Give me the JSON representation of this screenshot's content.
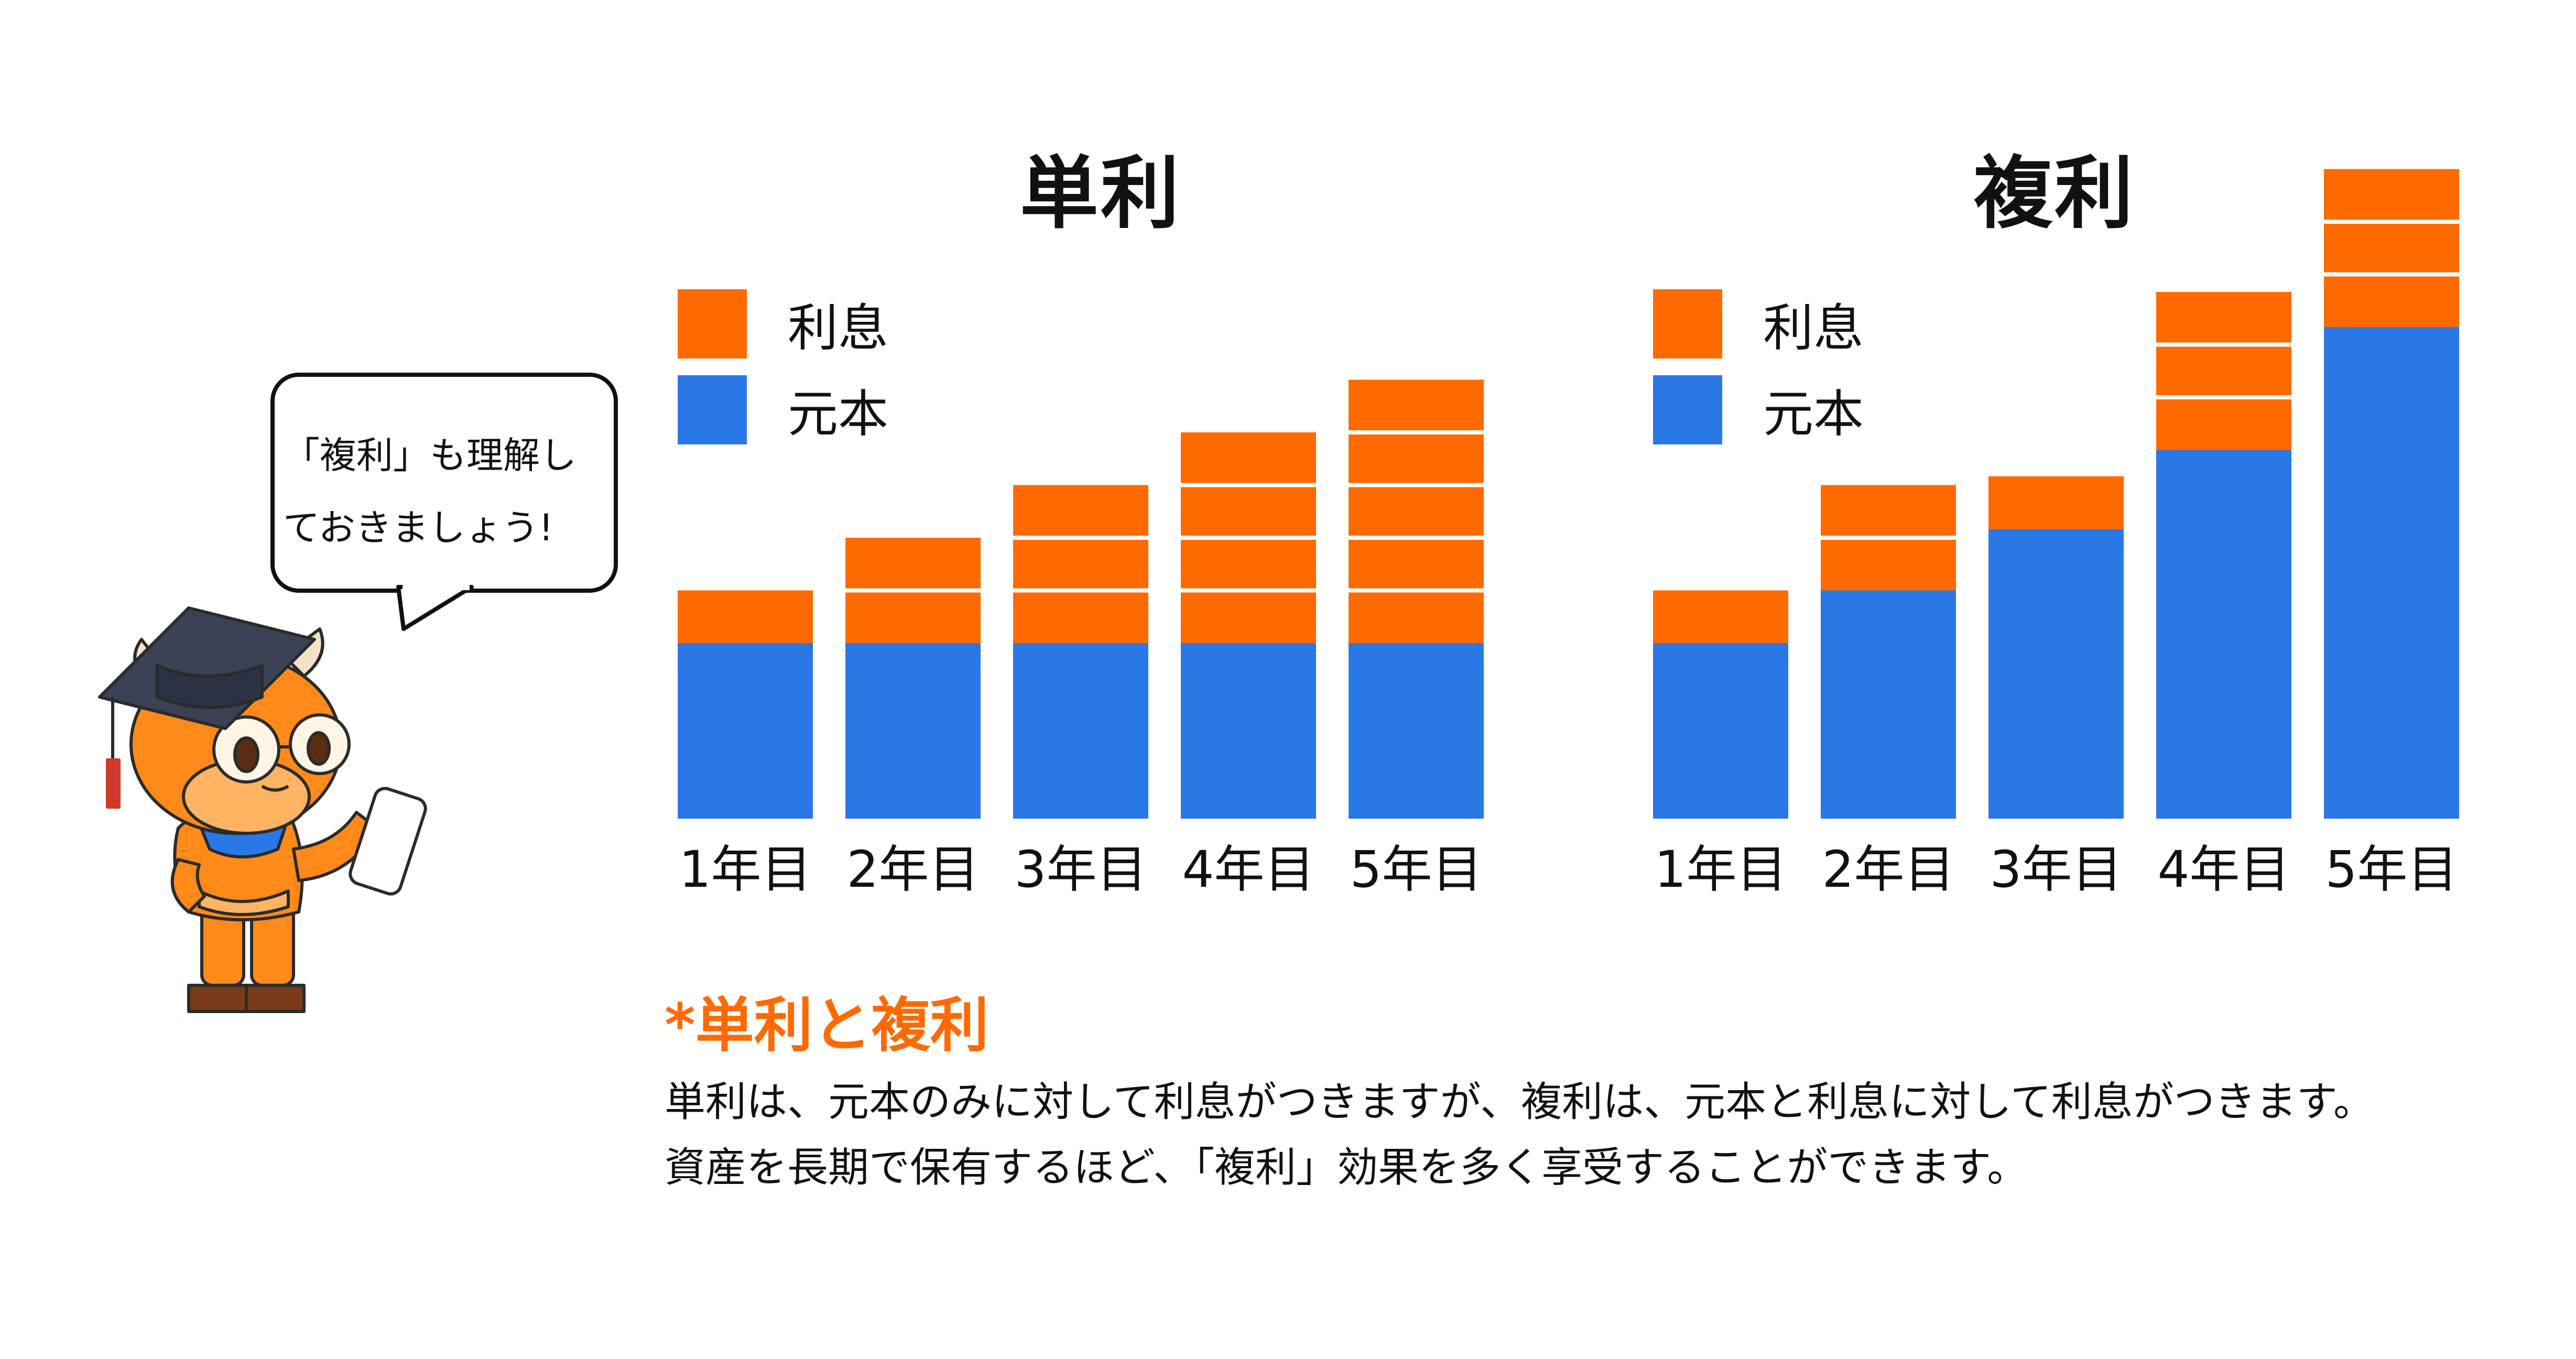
{
  "colors": {
    "interest": "#ff6a00",
    "principal": "#2a78e6",
    "divider": "#ffffff",
    "accent": "#ff6a00"
  },
  "chart_data": [
    {
      "type": "bar",
      "stacked": true,
      "title": "単利",
      "categories": [
        "1年目",
        "2年目",
        "3年目",
        "4年目",
        "5年目"
      ],
      "legend": [
        "利息",
        "元本"
      ],
      "legend_position": "top-left",
      "series": [
        {
          "name": "元本",
          "values": [
            1.0,
            1.0,
            1.0,
            1.0,
            1.0
          ]
        },
        {
          "name": "利息",
          "segments": [
            [
              0.3
            ],
            [
              0.3,
              0.3
            ],
            [
              0.3,
              0.3,
              0.3
            ],
            [
              0.3,
              0.3,
              0.3,
              0.3
            ],
            [
              0.3,
              0.3,
              0.3,
              0.3,
              0.3
            ]
          ]
        }
      ],
      "ylim": [
        0,
        2.6
      ],
      "grid": false
    },
    {
      "type": "bar",
      "stacked": true,
      "title": "複利",
      "categories": [
        "1年目",
        "2年目",
        "3年目",
        "4年目",
        "5年目"
      ],
      "legend": [
        "利息",
        "元本"
      ],
      "legend_position": "top-left",
      "series": [
        {
          "name": "元本",
          "values": [
            1.0,
            1.3,
            1.65,
            2.1,
            2.8
          ]
        },
        {
          "name": "利息",
          "segments": [
            [
              0.3
            ],
            [
              0.3,
              0.3
            ],
            [
              0.3
            ],
            [
              0.3,
              0.3,
              0.3
            ],
            [
              0.3,
              0.3,
              0.3
            ]
          ]
        }
      ],
      "ylim": [
        0,
        3.7
      ],
      "grid": false
    }
  ],
  "mascot": {
    "speech_lines": [
      "「複利」も理解し",
      "ておきましょう!"
    ]
  },
  "note": {
    "title": "*単利と複利",
    "lines": [
      "単利は、元本のみに対して利息がつきますが、複利は、元本と利息に対して利息がつきます。",
      "資産を長期で保有するほど、「複利」効果を多く享受することができます。"
    ]
  }
}
